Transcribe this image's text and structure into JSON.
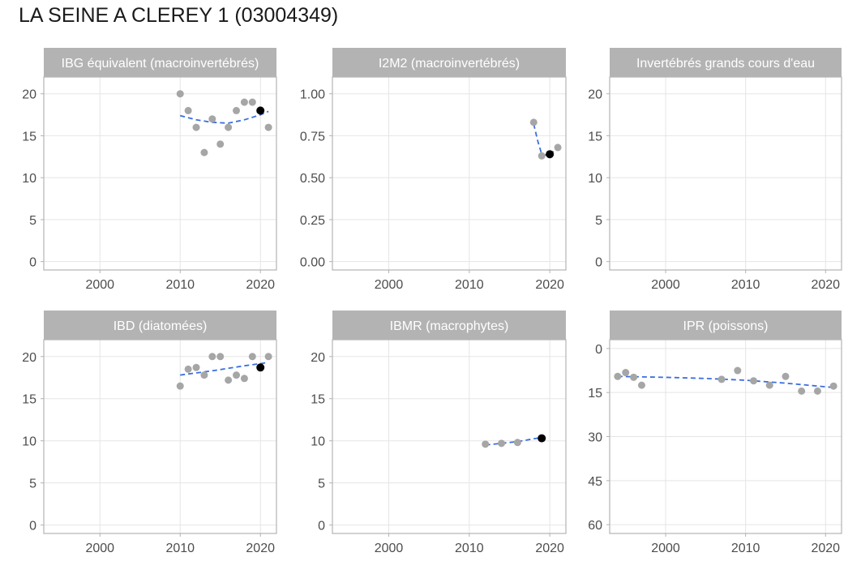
{
  "title": "LA SEINE A CLEREY 1 (03004349)",
  "colors": {
    "strip": "#b3b3b3",
    "panel_border": "#b3b3b3",
    "grid": "#e5e5e5",
    "point": "#a6a6a6",
    "point_highlight": "#000000",
    "trend": "#3a6ee0",
    "tick_text": "#4d4d4d"
  },
  "chart_data": [
    {
      "type": "scatter",
      "title": "IBG équivalent (macroinvertébrés)",
      "xlim": [
        1993,
        2022
      ],
      "ylim": [
        -1,
        22
      ],
      "x_ticks": [
        2000,
        2010,
        2020
      ],
      "x_tick_labels": [
        "2000",
        "2010",
        "2020"
      ],
      "y_ticks": [
        0,
        5,
        10,
        15,
        20
      ],
      "y_tick_labels": [
        "0",
        "5",
        "10",
        "15",
        "20"
      ],
      "y_reversed": false,
      "grid": true,
      "points": [
        {
          "x": 2010,
          "y": 20
        },
        {
          "x": 2011,
          "y": 18
        },
        {
          "x": 2012,
          "y": 16
        },
        {
          "x": 2013,
          "y": 13
        },
        {
          "x": 2014,
          "y": 17
        },
        {
          "x": 2015,
          "y": 14
        },
        {
          "x": 2016,
          "y": 16
        },
        {
          "x": 2017,
          "y": 18
        },
        {
          "x": 2018,
          "y": 19
        },
        {
          "x": 2019,
          "y": 19
        },
        {
          "x": 2021,
          "y": 16
        }
      ],
      "highlight": [
        {
          "x": 2020,
          "y": 18
        }
      ],
      "trend": [
        {
          "x": 2010,
          "y": 17.4
        },
        {
          "x": 2012,
          "y": 16.9
        },
        {
          "x": 2014,
          "y": 16.6
        },
        {
          "x": 2016,
          "y": 16.5
        },
        {
          "x": 2018,
          "y": 16.9
        },
        {
          "x": 2020,
          "y": 17.5
        },
        {
          "x": 2021,
          "y": 17.9
        }
      ]
    },
    {
      "type": "scatter",
      "title": "I2M2 (macroinvertébrés)",
      "xlim": [
        1993,
        2022
      ],
      "ylim": [
        -0.05,
        1.1
      ],
      "x_ticks": [
        2000,
        2010,
        2020
      ],
      "x_tick_labels": [
        "2000",
        "2010",
        "2020"
      ],
      "y_ticks": [
        0,
        0.25,
        0.5,
        0.75,
        1.0
      ],
      "y_tick_labels": [
        "0.00",
        "0.25",
        "0.50",
        "0.75",
        "1.00"
      ],
      "y_reversed": false,
      "grid": true,
      "points": [
        {
          "x": 2018,
          "y": 0.83
        },
        {
          "x": 2019,
          "y": 0.63
        },
        {
          "x": 2021,
          "y": 0.68
        }
      ],
      "highlight": [
        {
          "x": 2020,
          "y": 0.64
        }
      ],
      "trend": [
        {
          "x": 2018,
          "y": 0.82
        },
        {
          "x": 2018.5,
          "y": 0.72
        },
        {
          "x": 2019,
          "y": 0.64
        },
        {
          "x": 2020,
          "y": 0.63
        },
        {
          "x": 2021,
          "y": 0.69
        }
      ]
    },
    {
      "type": "scatter",
      "title": "Invertébrés grands cours d'eau",
      "xlim": [
        1993,
        2022
      ],
      "ylim": [
        -1,
        22
      ],
      "x_ticks": [
        2000,
        2010,
        2020
      ],
      "x_tick_labels": [
        "2000",
        "2010",
        "2020"
      ],
      "y_ticks": [
        0,
        5,
        10,
        15,
        20
      ],
      "y_tick_labels": [
        "0",
        "5",
        "10",
        "15",
        "20"
      ],
      "y_reversed": false,
      "grid": true,
      "points": [],
      "highlight": [],
      "trend": []
    },
    {
      "type": "scatter",
      "title": "IBD (diatomées)",
      "xlim": [
        1993,
        2022
      ],
      "ylim": [
        -1,
        22
      ],
      "x_ticks": [
        2000,
        2010,
        2020
      ],
      "x_tick_labels": [
        "2000",
        "2010",
        "2020"
      ],
      "y_ticks": [
        0,
        5,
        10,
        15,
        20
      ],
      "y_tick_labels": [
        "0",
        "5",
        "10",
        "15",
        "20"
      ],
      "y_reversed": false,
      "grid": true,
      "points": [
        {
          "x": 2010,
          "y": 16.5
        },
        {
          "x": 2011,
          "y": 18.5
        },
        {
          "x": 2012,
          "y": 18.7
        },
        {
          "x": 2013,
          "y": 17.8
        },
        {
          "x": 2014,
          "y": 20
        },
        {
          "x": 2015,
          "y": 20
        },
        {
          "x": 2016,
          "y": 17.2
        },
        {
          "x": 2017,
          "y": 17.8
        },
        {
          "x": 2018,
          "y": 17.4
        },
        {
          "x": 2019,
          "y": 20
        },
        {
          "x": 2021,
          "y": 20
        }
      ],
      "highlight": [
        {
          "x": 2020,
          "y": 18.7
        }
      ],
      "trend": [
        {
          "x": 2010,
          "y": 17.8
        },
        {
          "x": 2014,
          "y": 18.3
        },
        {
          "x": 2018,
          "y": 18.9
        },
        {
          "x": 2021,
          "y": 19.3
        }
      ]
    },
    {
      "type": "scatter",
      "title": "IBMR (macrophytes)",
      "xlim": [
        1993,
        2022
      ],
      "ylim": [
        -1,
        22
      ],
      "x_ticks": [
        2000,
        2010,
        2020
      ],
      "x_tick_labels": [
        "2000",
        "2010",
        "2020"
      ],
      "y_ticks": [
        0,
        5,
        10,
        15,
        20
      ],
      "y_tick_labels": [
        "0",
        "5",
        "10",
        "15",
        "20"
      ],
      "y_reversed": false,
      "grid": true,
      "points": [
        {
          "x": 2012,
          "y": 9.6
        },
        {
          "x": 2014,
          "y": 9.7
        },
        {
          "x": 2016,
          "y": 9.8
        }
      ],
      "highlight": [
        {
          "x": 2019,
          "y": 10.3
        }
      ],
      "trend": [
        {
          "x": 2012,
          "y": 9.5
        },
        {
          "x": 2014,
          "y": 9.7
        },
        {
          "x": 2016,
          "y": 9.9
        },
        {
          "x": 2019,
          "y": 10.4
        }
      ]
    },
    {
      "type": "scatter",
      "title": "IPR (poissons)",
      "xlim": [
        1993,
        2022
      ],
      "ylim": [
        -3,
        63
      ],
      "x_ticks": [
        2000,
        2010,
        2020
      ],
      "x_tick_labels": [
        "2000",
        "2010",
        "2020"
      ],
      "y_ticks": [
        0,
        15,
        30,
        45,
        60
      ],
      "y_tick_labels": [
        "0",
        "15",
        "30",
        "45",
        "60"
      ],
      "y_reversed": true,
      "grid": true,
      "points": [
        {
          "x": 1994,
          "y": 9.5
        },
        {
          "x": 1995,
          "y": 8.2
        },
        {
          "x": 1996,
          "y": 9.8
        },
        {
          "x": 1997,
          "y": 12.5
        },
        {
          "x": 2007,
          "y": 10.5
        },
        {
          "x": 2009,
          "y": 7.5
        },
        {
          "x": 2011,
          "y": 11
        },
        {
          "x": 2013,
          "y": 12.5
        },
        {
          "x": 2015,
          "y": 9.5
        },
        {
          "x": 2017,
          "y": 14.5
        },
        {
          "x": 2019,
          "y": 14.5
        },
        {
          "x": 2021,
          "y": 12.8
        }
      ],
      "highlight": [],
      "trend": [
        {
          "x": 1994,
          "y": 9.5
        },
        {
          "x": 2000,
          "y": 9.8
        },
        {
          "x": 2005,
          "y": 10.2
        },
        {
          "x": 2010,
          "y": 10.8
        },
        {
          "x": 2015,
          "y": 11.8
        },
        {
          "x": 2021,
          "y": 13.3
        }
      ]
    }
  ]
}
